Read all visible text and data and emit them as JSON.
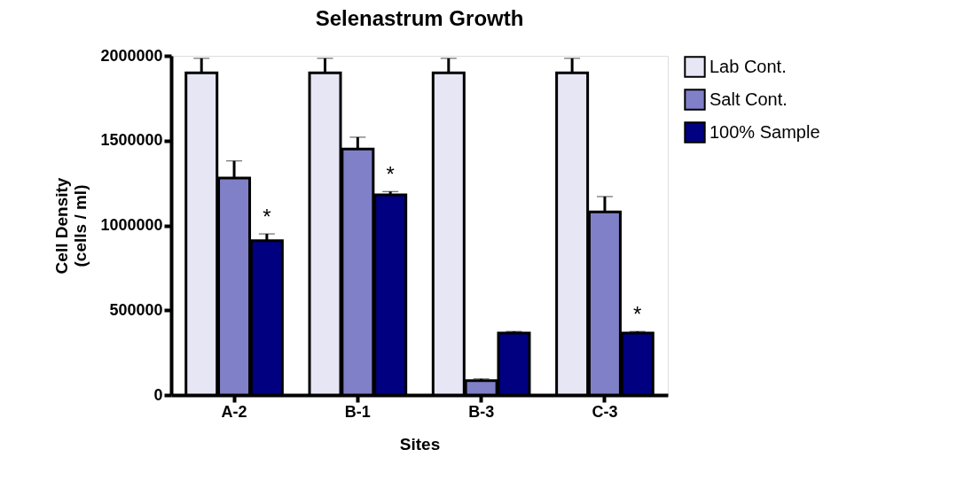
{
  "chart_data": {
    "type": "bar",
    "title": "Selenastrum Growth",
    "xlabel": "Sites",
    "ylabel": "Cell Density\n(cells / ml)",
    "categories": [
      "A-2",
      "B-1",
      "B-3",
      "C-3"
    ],
    "series": [
      {
        "name": "Lab Cont.",
        "color": "#e6e6f5",
        "values": [
          1900000,
          1900000,
          1900000,
          1900000
        ],
        "errors": [
          85000,
          85000,
          85000,
          85000
        ]
      },
      {
        "name": "Salt Cont.",
        "color": "#8080c8",
        "values": [
          1280000,
          1450000,
          85000,
          1080000
        ],
        "errors": [
          100000,
          70000,
          10000,
          90000
        ]
      },
      {
        "name": "100% Sample",
        "color": "#000080",
        "values": [
          910000,
          1180000,
          365000,
          365000
        ],
        "errors": [
          40000,
          20000,
          10000,
          10000
        ],
        "value_labels": [
          "*",
          "*",
          null,
          "*"
        ]
      }
    ],
    "ylim": [
      0,
      2000000
    ],
    "yticks": [
      0,
      500000,
      1000000,
      1500000,
      2000000
    ],
    "grid": false,
    "legend": "right"
  }
}
